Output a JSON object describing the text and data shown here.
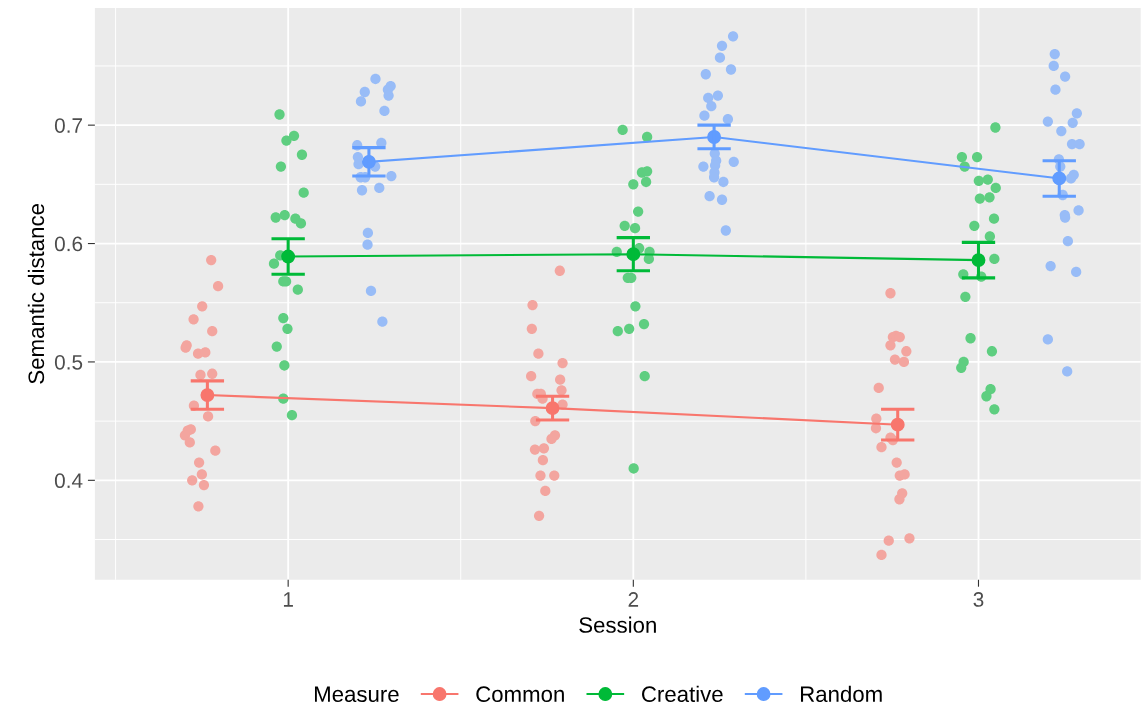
{
  "chart_data": {
    "type": "scatter",
    "xlabel": "Session",
    "ylabel": "Semantic distance",
    "legend_title": "Measure",
    "legend": "bottom",
    "grid": true,
    "xlim": [
      0.44,
      3.47
    ],
    "ylim": [
      0.316,
      0.799
    ],
    "xticks": [
      {
        "value": 0.5,
        "label": null
      },
      1,
      {
        "value": 1.5,
        "label": null
      },
      2,
      {
        "value": 2.5,
        "label": null
      },
      3
    ],
    "yticks": [
      {
        "value": 0.35,
        "label": null
      },
      0.4,
      {
        "value": 0.45,
        "label": null
      },
      0.5,
      {
        "value": 0.55,
        "label": null
      },
      0.6,
      {
        "value": 0.65,
        "label": null
      },
      0.7,
      {
        "value": 0.75,
        "label": null
      }
    ],
    "series": [
      {
        "color": "#f3a59f",
        "x": [
          0.777,
          0.797,
          0.751,
          0.726,
          0.78,
          0.706,
          0.703,
          0.739,
          0.76,
          0.746,
          0.78,
          0.727,
          0.768,
          0.718,
          0.709,
          0.701,
          0.715,
          0.789,
          0.742,
          0.75,
          0.722,
          0.756,
          0.74,
          1.787,
          1.708,
          1.706,
          1.725,
          1.795,
          1.704,
          1.788,
          1.792,
          1.722,
          1.732,
          1.737,
          1.795,
          1.716,
          1.773,
          1.763,
          1.715,
          1.741,
          1.738,
          1.731,
          1.771,
          1.745,
          1.727,
          2.745,
          2.752,
          2.761,
          2.772,
          2.745,
          2.791,
          2.758,
          2.784,
          2.711,
          2.704,
          2.703,
          2.745,
          2.752,
          2.719,
          2.763,
          2.772,
          2.786,
          2.779,
          2.771,
          2.8,
          2.74,
          2.719
        ],
        "values": [
          0.586,
          0.564,
          0.547,
          0.536,
          0.526,
          0.514,
          0.512,
          0.507,
          0.508,
          0.489,
          0.49,
          0.463,
          0.454,
          0.443,
          0.442,
          0.438,
          0.432,
          0.425,
          0.415,
          0.405,
          0.4,
          0.396,
          0.378,
          0.577,
          0.548,
          0.528,
          0.507,
          0.499,
          0.488,
          0.485,
          0.476,
          0.473,
          0.473,
          0.469,
          0.464,
          0.45,
          0.438,
          0.435,
          0.426,
          0.427,
          0.417,
          0.404,
          0.404,
          0.391,
          0.37,
          0.558,
          0.521,
          0.522,
          0.521,
          0.514,
          0.509,
          0.502,
          0.5,
          0.478,
          0.452,
          0.444,
          0.436,
          0.434,
          0.428,
          0.415,
          0.404,
          0.405,
          0.389,
          0.384,
          0.351,
          0.349,
          0.337
        ]
      },
      {
        "color": "#5ece80",
        "x": [
          0.975,
          1.017,
          0.995,
          1.04,
          0.979,
          1.045,
          0.964,
          0.99,
          1.021,
          1.037,
          0.977,
          0.959,
          0.986,
          0.994,
          1.028,
          0.986,
          0.998,
          0.967,
          0.989,
          0.986,
          1.011,
          1.969,
          2.04,
          2.025,
          2.04,
          2.037,
          2.0,
          2.014,
          1.975,
          2.005,
          1.952,
          2.017,
          2.047,
          2.045,
          1.984,
          1.994,
          2.006,
          2.031,
          1.988,
          1.955,
          2.033,
          2.001,
          3.049,
          2.952,
          2.996,
          2.96,
          3.001,
          3.027,
          3.05,
          3.004,
          3.032,
          3.045,
          2.988,
          3.033,
          3.046,
          2.956,
          3.008,
          2.962,
          2.977,
          3.039,
          2.957,
          2.95,
          3.035,
          3.023,
          3.046
        ],
        "values": [
          0.709,
          0.691,
          0.687,
          0.675,
          0.665,
          0.643,
          0.622,
          0.624,
          0.621,
          0.617,
          0.59,
          0.583,
          0.568,
          0.568,
          0.561,
          0.537,
          0.528,
          0.513,
          0.497,
          0.469,
          0.455,
          0.696,
          0.69,
          0.66,
          0.661,
          0.652,
          0.65,
          0.627,
          0.615,
          0.613,
          0.593,
          0.596,
          0.593,
          0.587,
          0.571,
          0.571,
          0.547,
          0.532,
          0.528,
          0.526,
          0.488,
          0.41,
          0.698,
          0.673,
          0.673,
          0.665,
          0.653,
          0.654,
          0.647,
          0.638,
          0.639,
          0.621,
          0.615,
          0.606,
          0.587,
          0.574,
          0.572,
          0.555,
          0.52,
          0.509,
          0.5,
          0.495,
          0.477,
          0.471,
          0.46
        ]
      },
      {
        "color": "#98bcf7",
        "x": [
          1.253,
          1.297,
          1.289,
          1.291,
          1.222,
          1.211,
          1.279,
          1.2,
          1.27,
          1.202,
          1.204,
          1.252,
          1.21,
          1.223,
          1.299,
          1.214,
          1.264,
          1.231,
          1.23,
          1.24,
          1.273,
          2.289,
          2.257,
          2.251,
          2.283,
          2.21,
          2.217,
          2.245,
          2.226,
          2.206,
          2.274,
          2.236,
          2.24,
          2.237,
          2.203,
          2.291,
          2.235,
          2.234,
          2.261,
          2.221,
          2.257,
          2.268,
          3.221,
          3.218,
          3.251,
          3.223,
          3.285,
          3.201,
          3.273,
          3.24,
          3.271,
          3.293,
          3.233,
          3.237,
          3.276,
          3.268,
          3.244,
          3.25,
          3.251,
          3.29,
          3.259,
          3.209,
          3.283,
          3.201,
          3.257
        ],
        "values": [
          0.739,
          0.733,
          0.73,
          0.725,
          0.728,
          0.72,
          0.712,
          0.683,
          0.685,
          0.673,
          0.667,
          0.665,
          0.656,
          0.656,
          0.657,
          0.645,
          0.647,
          0.609,
          0.599,
          0.56,
          0.534,
          0.775,
          0.767,
          0.757,
          0.747,
          0.743,
          0.723,
          0.725,
          0.716,
          0.708,
          0.705,
          0.676,
          0.67,
          0.666,
          0.665,
          0.669,
          0.66,
          0.656,
          0.652,
          0.64,
          0.637,
          0.611,
          0.76,
          0.75,
          0.741,
          0.73,
          0.71,
          0.703,
          0.702,
          0.695,
          0.684,
          0.684,
          0.671,
          0.665,
          0.658,
          0.655,
          0.641,
          0.624,
          0.622,
          0.628,
          0.602,
          0.581,
          0.576,
          0.519,
          0.492
        ]
      },
      {
        "type": "line",
        "name": "Common",
        "color": "#f8766d",
        "marker": "circle",
        "x": [
          0.766,
          1.766,
          2.766
        ],
        "values": [
          0.472,
          0.461,
          0.447
        ],
        "errors": [
          0.012,
          0.01,
          0.013
        ]
      },
      {
        "type": "line",
        "name": "Creative",
        "color": "#00ba38",
        "marker": "circle",
        "x": [
          1.0,
          2.0,
          3.0
        ],
        "values": [
          0.589,
          0.591,
          0.586
        ],
        "errors": [
          0.015,
          0.014,
          0.015
        ]
      },
      {
        "type": "line",
        "name": "Random",
        "color": "#619cff",
        "marker": "circle",
        "x": [
          1.234,
          2.234,
          3.234
        ],
        "values": [
          0.669,
          0.69,
          0.655
        ],
        "errors": [
          0.012,
          0.01,
          0.015
        ]
      }
    ]
  }
}
